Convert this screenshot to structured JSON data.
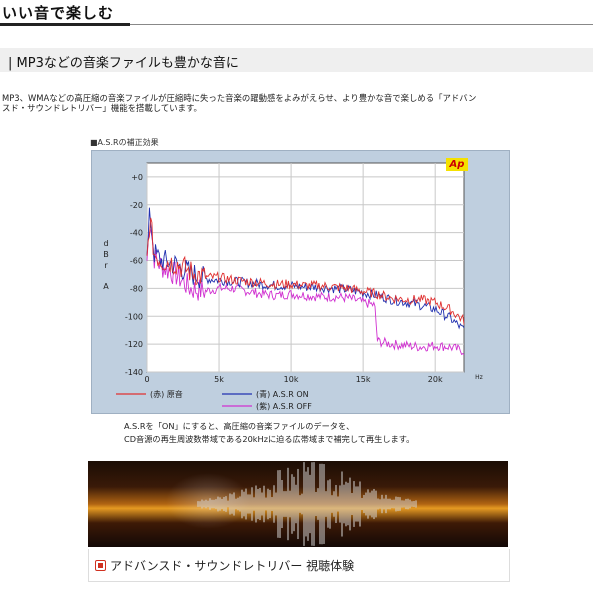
{
  "page": {
    "heading": "いい音で楽しむ",
    "subheading": "| MP3などの音楽ファイルも豊かな音に",
    "description_line1": "MP3、WMAなどの高圧縮の音楽ファイルが圧縮時に失った音楽の躍動感をよみがえらせ、より豊かな音で楽しめる「アドバン",
    "description_line2": "スド・サウンドレトリバー」機能を搭載しています。",
    "figure_caption": "■A.S.Rの補正効果",
    "note_line1": "A.S.Rを「ON」にすると、高圧縮の音楽ファイルのデータを、",
    "note_line2": "CD音源の再生周波数帯域である20kHzに迫る広帯域まで補完して再生します。",
    "link_text": "アドバンスド・サウンドレトリバー 視聴体験"
  },
  "colors": {
    "original": "#e03030",
    "asr_on": "#2030b0",
    "asr_off": "#d030d0",
    "link_icon": "#d03020"
  },
  "chart_data": {
    "type": "line",
    "logo": "Ap",
    "ylabel": "d B r  A",
    "xunit": "Hz",
    "xlim": [
      0,
      22000
    ],
    "ylim": [
      -140,
      10
    ],
    "xticks": [
      "0",
      "5k",
      "10k",
      "15k",
      "20k"
    ],
    "yticks": [
      "+0",
      "-20",
      "-40",
      "-60",
      "-80",
      "-100",
      "-120",
      "-140"
    ],
    "grid": true,
    "legend": [
      {
        "key": "original",
        "text": "(赤) 原音"
      },
      {
        "key": "asr_on",
        "text": "(青)  A.S.R  ON"
      },
      {
        "key": "asr_off",
        "text": "(紫)  A.S.R  OFF"
      }
    ],
    "series": [
      {
        "name": "(赤) 原音",
        "x": [
          0,
          200,
          500,
          1000,
          2000,
          3000,
          4000,
          5000,
          6000,
          7000,
          8000,
          9000,
          10000,
          11000,
          12000,
          13000,
          14000,
          15000,
          16000,
          17000,
          18000,
          19000,
          20000,
          21000,
          22000
        ],
        "y": [
          -60,
          -30,
          -55,
          -60,
          -62,
          -68,
          -72,
          -72,
          -74,
          -75,
          -76,
          -77,
          -77,
          -78,
          -78,
          -79,
          -80,
          -82,
          -84,
          -87,
          -88,
          -88,
          -90,
          -95,
          -103
        ]
      },
      {
        "name": "(青)  A.S.R  ON",
        "x": [
          0,
          200,
          500,
          1000,
          2000,
          3000,
          4000,
          5000,
          6000,
          7000,
          8000,
          9000,
          10000,
          11000,
          12000,
          13000,
          14000,
          15000,
          16000,
          17000,
          18000,
          19000,
          20000,
          21000,
          22000
        ],
        "y": [
          -60,
          -25,
          -55,
          -60,
          -63,
          -69,
          -73,
          -74,
          -75,
          -76,
          -77,
          -78,
          -78,
          -79,
          -79,
          -80,
          -81,
          -83,
          -85,
          -88,
          -90,
          -92,
          -95,
          -101,
          -110
        ]
      },
      {
        "name": "(紫)  A.S.R  OFF",
        "x": [
          0,
          200,
          500,
          1000,
          2000,
          3000,
          4000,
          5000,
          6000,
          7000,
          8000,
          9000,
          10000,
          11000,
          12000,
          13000,
          14000,
          15000,
          15800,
          16000,
          17000,
          18000,
          19000,
          20000,
          21000,
          22000
        ],
        "y": [
          -60,
          -28,
          -58,
          -64,
          -70,
          -80,
          -82,
          -80,
          -80,
          -82,
          -84,
          -85,
          -84,
          -85,
          -86,
          -86,
          -87,
          -90,
          -92,
          -118,
          -120,
          -121,
          -122,
          -121,
          -122,
          -125
        ]
      }
    ]
  }
}
